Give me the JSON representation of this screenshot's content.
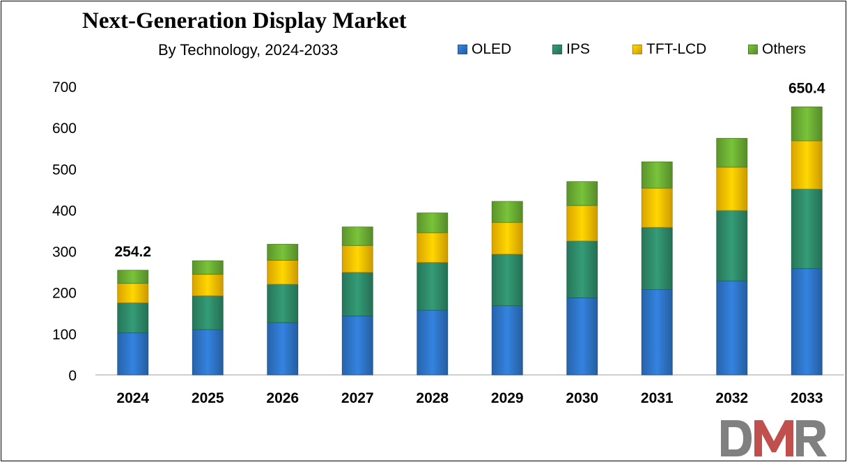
{
  "chart_data": {
    "type": "bar",
    "stacked": true,
    "title": "Next-Generation Display Market",
    "subtitle": "By Technology,  2024-2033",
    "categories": [
      "2024",
      "2025",
      "2026",
      "2027",
      "2028",
      "2029",
      "2030",
      "2031",
      "2032",
      "2033"
    ],
    "series": [
      {
        "name": "OLED",
        "color": "#2E75C8",
        "values": [
          102,
          110,
          127,
          143,
          157,
          168,
          187,
          207,
          228,
          258
        ]
      },
      {
        "name": "IPS",
        "color": "#2E8B6A",
        "values": [
          73,
          82,
          93,
          106,
          116,
          125,
          138,
          151,
          171,
          193
        ]
      },
      {
        "name": "TFT-LCD",
        "color": "#FFC000",
        "values": [
          47,
          52,
          58,
          65,
          72,
          77,
          86,
          95,
          105,
          117
        ]
      },
      {
        "name": "Others",
        "color": "#6CAE34",
        "values": [
          32,
          33,
          39,
          45,
          48,
          51,
          58,
          64,
          70,
          82.4
        ]
      }
    ],
    "totals_labels": [
      {
        "category": "2024",
        "label": "254.2"
      },
      {
        "category": "2033",
        "label": "650.4"
      }
    ],
    "ylim": [
      0,
      700
    ],
    "yticks": [
      "0",
      "100",
      "200",
      "300",
      "400",
      "500",
      "600",
      "700"
    ],
    "xlabel": "",
    "ylabel": "",
    "grid": false,
    "legend_position": "top-right"
  },
  "logo": {
    "text": "DMR",
    "colors": [
      "#808080",
      "#C0504D"
    ]
  }
}
